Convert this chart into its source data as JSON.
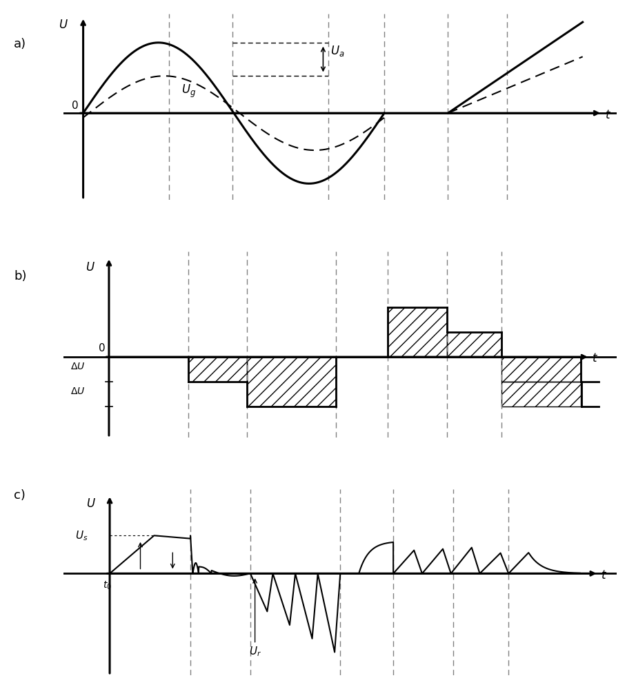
{
  "bg_color": "#ffffff",
  "panel_a_ylim": [
    -1.35,
    1.55
  ],
  "panel_b_ylim": [
    -0.42,
    0.55
  ],
  "panel_c_ylim": [
    -0.75,
    0.62
  ],
  "vline_positions": [
    0.175,
    0.305,
    0.5,
    0.615,
    0.745,
    0.865
  ],
  "sine_period": 0.615,
  "sine_amp_solid": 1.1,
  "sine_amp_dashed": 0.58,
  "dU": 0.13,
  "Us": 0.28,
  "label_a": "a)",
  "label_b": "b)",
  "label_c": "c)"
}
